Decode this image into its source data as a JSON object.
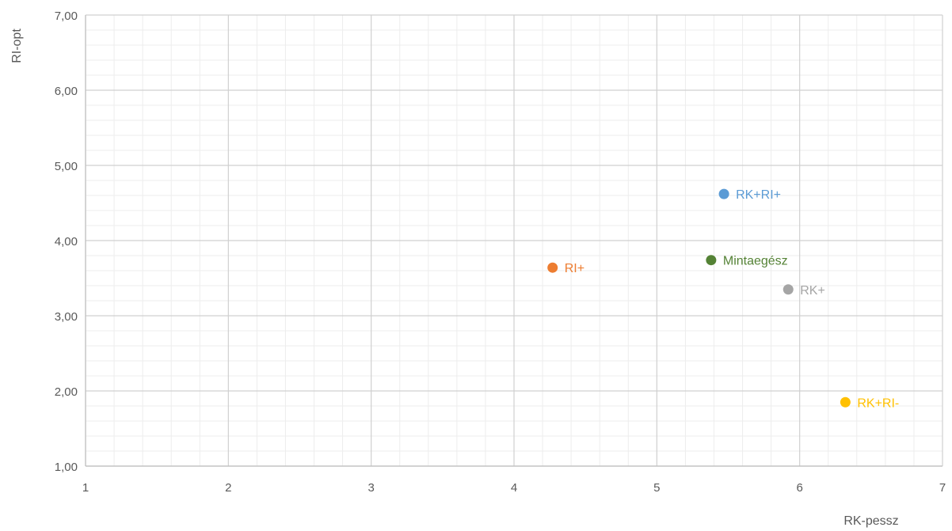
{
  "chart_data": {
    "type": "scatter",
    "title": "",
    "xlabel": "RK-pessz",
    "ylabel": "RI-opt",
    "xlim": [
      1,
      7
    ],
    "ylim": [
      1,
      7
    ],
    "x_ticks": [
      "1",
      "2",
      "3",
      "4",
      "5",
      "6",
      "7"
    ],
    "y_ticks": [
      "1,00",
      "2,00",
      "3,00",
      "4,00",
      "5,00",
      "6,00",
      "7,00"
    ],
    "grid": true,
    "minor_grid": true,
    "legend": "none",
    "points": [
      {
        "label": "RK+RI+",
        "x": 5.47,
        "y": 4.62,
        "color": "#5B9BD5"
      },
      {
        "label": "Mintaegész",
        "x": 5.38,
        "y": 3.74,
        "color": "#548235"
      },
      {
        "label": "RI+",
        "x": 4.27,
        "y": 3.64,
        "color": "#ED7D31"
      },
      {
        "label": "RK+",
        "x": 5.92,
        "y": 3.35,
        "color": "#A5A5A5"
      },
      {
        "label": "RK+RI-",
        "x": 6.32,
        "y": 1.85,
        "color": "#FFC000"
      }
    ]
  }
}
